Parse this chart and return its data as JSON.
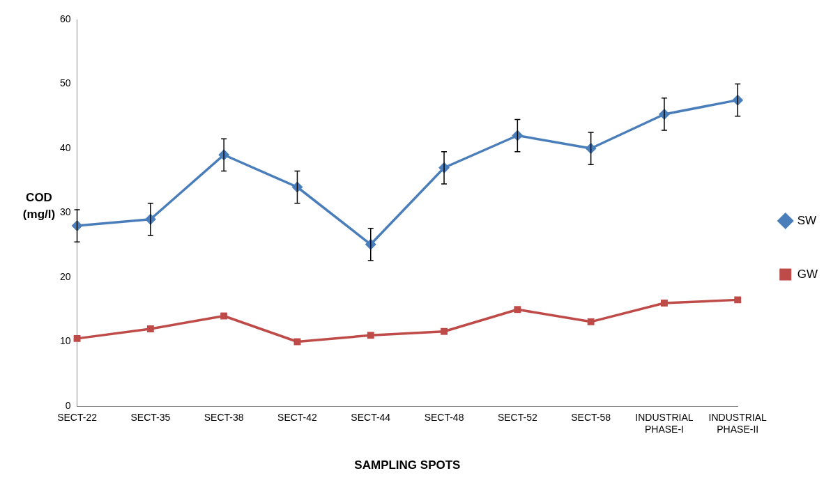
{
  "chart_data": {
    "type": "line",
    "xlabel": "SAMPLING SPOTS",
    "ylabel": "COD\n(mg/l)",
    "categories": [
      "SECT-22",
      "SECT-35",
      "SECT-38",
      "SECT-42",
      "SECT-44",
      "SECT-48",
      "SECT-52",
      "SECT-58",
      "INDUSTRIAL PHASE-I",
      "INDUSTRIAL PHASE-II"
    ],
    "series": [
      {
        "name": "SW",
        "color": "#4a7ebb",
        "marker": "diamond",
        "values": [
          28,
          29,
          39,
          34,
          25.1,
          37,
          42,
          40,
          45.3,
          47.5
        ],
        "errors": [
          2.5,
          2.5,
          2.5,
          2.5,
          2.5,
          2.5,
          2.5,
          2.5,
          2.5,
          2.5
        ]
      },
      {
        "name": "GW",
        "color": "#be4b48",
        "marker": "square",
        "values": [
          10.5,
          12,
          14,
          10,
          11,
          11.6,
          15,
          13.1,
          16,
          16.5
        ]
      }
    ],
    "ylim": [
      0,
      60
    ],
    "yticks": [
      0,
      10,
      20,
      30,
      40,
      50,
      60
    ],
    "grid": false,
    "legend": "right"
  }
}
